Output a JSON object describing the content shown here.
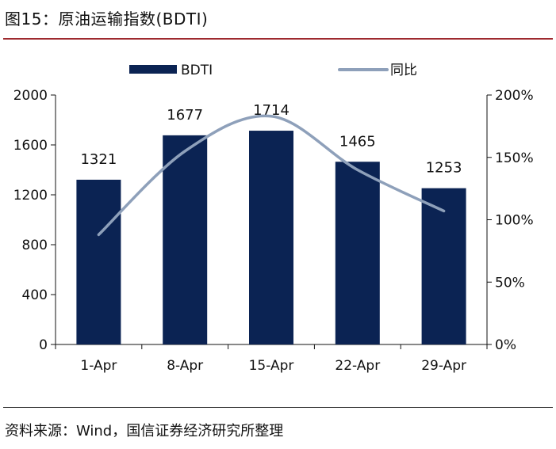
{
  "header": {
    "title": "图15：原油运输指数(BDTI)"
  },
  "footer": {
    "source": "资料来源：Wind，国信证券经济研究所整理"
  },
  "chart_data": {
    "type": "bar",
    "categories": [
      "1-Apr",
      "8-Apr",
      "15-Apr",
      "22-Apr",
      "29-Apr"
    ],
    "series": [
      {
        "name": "BDTI",
        "type": "bar",
        "axis": "left",
        "values": [
          1321,
          1677,
          1714,
          1465,
          1253
        ],
        "labels": [
          "1321",
          "1677",
          "1714",
          "1465",
          "1253"
        ],
        "color": "#0b2353"
      },
      {
        "name": "同比",
        "type": "line",
        "axis": "right",
        "values": [
          88,
          155,
          183,
          140,
          107
        ],
        "color": "#8ea0ba"
      }
    ],
    "y_left": {
      "ylim": [
        0,
        2000
      ],
      "ticks": [
        "0",
        "400",
        "800",
        "1200",
        "1600",
        "2000"
      ]
    },
    "y_right": {
      "ylim": [
        0,
        200
      ],
      "ticks": [
        "0%",
        "50%",
        "100%",
        "150%",
        "200%"
      ]
    },
    "legend_placement": "top-center",
    "grid": false
  }
}
